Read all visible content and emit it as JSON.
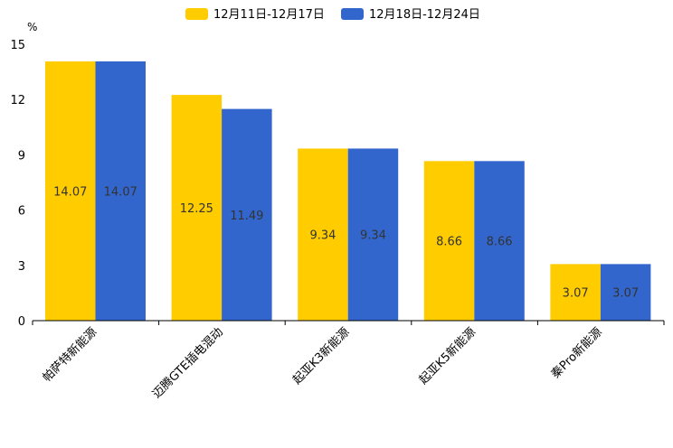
{
  "chart_data": {
    "type": "bar",
    "unit": "%",
    "categories": [
      "帕萨特新能源",
      "迈腾GTE插电混动",
      "起亚K3新能源",
      "起亚K5新能源",
      "秦Pro新能源"
    ],
    "series": [
      {
        "name": "12月11日-12月17日",
        "color": "#FFCC00",
        "values": [
          14.07,
          12.25,
          9.34,
          8.66,
          3.07
        ]
      },
      {
        "name": "12月18日-12月24日",
        "color": "#3366CC",
        "values": [
          14.07,
          11.49,
          9.34,
          8.66,
          3.07
        ]
      }
    ],
    "data_labels": [
      [
        "14.07",
        "12.25",
        "9.34",
        "8.66",
        "3.07"
      ],
      [
        "14.07",
        "11.49",
        "9.34",
        "8.66",
        "3.07"
      ]
    ],
    "y_ticks": [
      "0",
      "3",
      "6",
      "9",
      "12",
      "15"
    ],
    "ylim": [
      0,
      15
    ],
    "legend_position": "top-center",
    "grid": false
  }
}
